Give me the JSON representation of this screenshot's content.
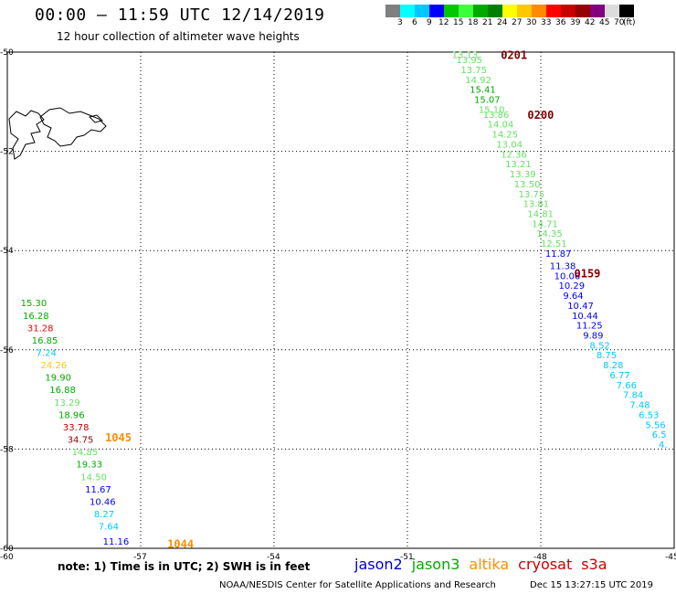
{
  "header": {
    "title": "00:00 – 11:59 UTC 12/14/2019",
    "subtitle": "12 hour collection of altimeter wave heights"
  },
  "legend": {
    "colors": [
      "#7f7f7f",
      "#00ffff",
      "#00c8ff",
      "#0000ff",
      "#00c800",
      "#3cff3c",
      "#00aa00",
      "#008000",
      "#ffff00",
      "#ffc800",
      "#ff8c00",
      "#ff0000",
      "#c80000",
      "#960000",
      "#800080",
      "#dcdcdc",
      "#000000"
    ],
    "labels": [
      "3",
      "6",
      "9",
      "12",
      "15",
      "18",
      "21",
      "24",
      "27",
      "30",
      "33",
      "36",
      "39",
      "42",
      "45",
      "70",
      "(ft)"
    ]
  },
  "axes": {
    "x_ticks": [
      "-60",
      "-57",
      "-54",
      "-51",
      "-48",
      "-45"
    ],
    "y_ticks": [
      "-50",
      "-52",
      "-54",
      "-56",
      "-58",
      "-60"
    ],
    "xlim": [
      -60,
      -45
    ],
    "ylim": [
      -60,
      -50
    ]
  },
  "chart_data": {
    "type": "scatter",
    "x_unit": "longitude",
    "y_unit": "latitude",
    "time_labels": [
      {
        "text": "0201",
        "lon": -48.9,
        "lat": -50.05,
        "color": "#800000"
      },
      {
        "text": "0200",
        "lon": -48.3,
        "lat": -51.25,
        "color": "#800000"
      },
      {
        "text": "0159",
        "lon": -47.25,
        "lat": -54.45,
        "color": "#800000"
      },
      {
        "text": "1045",
        "lon": -57.8,
        "lat": -57.75,
        "color": "#ff8c00"
      },
      {
        "text": "1044",
        "lon": -56.4,
        "lat": -59.9,
        "color": "#ff8c00"
      }
    ],
    "passes": [
      {
        "points": [
          {
            "lon": -50.0,
            "lat": -50.05,
            "v": "13.13",
            "c": "#66e066"
          },
          {
            "lon": -49.9,
            "lat": -50.15,
            "v": "13.95",
            "c": "#66e066"
          },
          {
            "lon": -49.8,
            "lat": -50.35,
            "v": "13.75",
            "c": "#66e066"
          },
          {
            "lon": -49.7,
            "lat": -50.55,
            "v": "14.92",
            "c": "#66e066"
          },
          {
            "lon": -49.6,
            "lat": -50.75,
            "v": "15.41",
            "c": "#00aa00"
          },
          {
            "lon": -49.5,
            "lat": -50.95,
            "v": "15.07",
            "c": "#00aa00"
          },
          {
            "lon": -49.4,
            "lat": -51.15,
            "v": "15.10",
            "c": "#66e066"
          },
          {
            "lon": -49.3,
            "lat": -51.25,
            "v": "13.86",
            "c": "#66e066"
          },
          {
            "lon": -49.2,
            "lat": -51.45,
            "v": "14.04",
            "c": "#66e066"
          },
          {
            "lon": -49.1,
            "lat": -51.65,
            "v": "14.25",
            "c": "#66e066"
          },
          {
            "lon": -49.0,
            "lat": -51.85,
            "v": "13.04",
            "c": "#66e066"
          },
          {
            "lon": -48.9,
            "lat": -52.05,
            "v": "12.36",
            "c": "#66e066"
          },
          {
            "lon": -48.8,
            "lat": -52.25,
            "v": "13.21",
            "c": "#66e066"
          },
          {
            "lon": -48.7,
            "lat": -52.45,
            "v": "13.39",
            "c": "#66e066"
          },
          {
            "lon": -48.6,
            "lat": -52.65,
            "v": "13.50",
            "c": "#66e066"
          },
          {
            "lon": -48.5,
            "lat": -52.85,
            "v": "13.75",
            "c": "#66e066"
          },
          {
            "lon": -48.4,
            "lat": -53.05,
            "v": "13.81",
            "c": "#66e066"
          },
          {
            "lon": -48.3,
            "lat": -53.25,
            "v": "14.81",
            "c": "#66e066"
          },
          {
            "lon": -48.2,
            "lat": -53.45,
            "v": "14.71",
            "c": "#66e066"
          },
          {
            "lon": -48.1,
            "lat": -53.65,
            "v": "14.35",
            "c": "#66e066"
          },
          {
            "lon": -48.0,
            "lat": -53.85,
            "v": "12.51",
            "c": "#66e066"
          },
          {
            "lon": -47.9,
            "lat": -54.05,
            "v": "11.87",
            "c": "#0000ff"
          },
          {
            "lon": -47.8,
            "lat": -54.3,
            "v": "11.38",
            "c": "#0000ff"
          },
          {
            "lon": -47.7,
            "lat": -54.5,
            "v": "10.06",
            "c": "#0000ff"
          },
          {
            "lon": -47.6,
            "lat": -54.7,
            "v": "10.29",
            "c": "#0000ff"
          },
          {
            "lon": -47.5,
            "lat": -54.9,
            "v": "9.64",
            "c": "#0000ff"
          },
          {
            "lon": -47.4,
            "lat": -55.1,
            "v": "10.47",
            "c": "#0000ff"
          },
          {
            "lon": -47.3,
            "lat": -55.3,
            "v": "10.44",
            "c": "#0000ff"
          },
          {
            "lon": -47.2,
            "lat": -55.5,
            "v": "11.25",
            "c": "#0000ff"
          },
          {
            "lon": -47.05,
            "lat": -55.7,
            "v": "9.89",
            "c": "#0000ff"
          },
          {
            "lon": -46.9,
            "lat": -55.9,
            "v": "8.52",
            "c": "#00c8ff"
          },
          {
            "lon": -46.75,
            "lat": -56.1,
            "v": "8.75",
            "c": "#00c8ff"
          },
          {
            "lon": -46.6,
            "lat": -56.3,
            "v": "8.28",
            "c": "#00c8ff"
          },
          {
            "lon": -46.45,
            "lat": -56.5,
            "v": "6.77",
            "c": "#00c8ff"
          },
          {
            "lon": -46.3,
            "lat": -56.7,
            "v": "7.66",
            "c": "#00c8ff"
          },
          {
            "lon": -46.15,
            "lat": -56.9,
            "v": "7.84",
            "c": "#00c8ff"
          },
          {
            "lon": -46.0,
            "lat": -57.1,
            "v": "7.48",
            "c": "#00c8ff"
          },
          {
            "lon": -45.8,
            "lat": -57.3,
            "v": "6.53",
            "c": "#00c8ff"
          },
          {
            "lon": -45.65,
            "lat": -57.5,
            "v": "5.56",
            "c": "#00c8ff"
          },
          {
            "lon": -45.5,
            "lat": -57.7,
            "v": "6.5",
            "c": "#00c8ff"
          },
          {
            "lon": -45.35,
            "lat": -57.9,
            "v": "4.",
            "c": "#00c8ff"
          }
        ]
      },
      {
        "points": [
          {
            "lon": -59.7,
            "lat": -55.05,
            "v": "15.30",
            "c": "#00aa00"
          },
          {
            "lon": -59.65,
            "lat": -55.3,
            "v": "16.28",
            "c": "#00aa00"
          },
          {
            "lon": -59.55,
            "lat": -55.55,
            "v": "31.28",
            "c": "#ff0000"
          },
          {
            "lon": -59.45,
            "lat": -55.8,
            "v": "16.85",
            "c": "#00aa00"
          },
          {
            "lon": -59.35,
            "lat": -56.05,
            "v": "7.24",
            "c": "#00c8ff"
          },
          {
            "lon": -59.25,
            "lat": -56.3,
            "v": "24.26",
            "c": "#ffc800"
          },
          {
            "lon": -59.15,
            "lat": -56.55,
            "v": "19.90",
            "c": "#00aa00"
          },
          {
            "lon": -59.05,
            "lat": -56.8,
            "v": "16.88",
            "c": "#00aa00"
          },
          {
            "lon": -58.95,
            "lat": -57.05,
            "v": "13.29",
            "c": "#66e066"
          },
          {
            "lon": -58.85,
            "lat": -57.3,
            "v": "18.96",
            "c": "#00aa00"
          },
          {
            "lon": -58.75,
            "lat": -57.55,
            "v": "33.78",
            "c": "#c80000"
          },
          {
            "lon": -58.65,
            "lat": -57.8,
            "v": "34.75",
            "c": "#960000"
          },
          {
            "lon": -58.55,
            "lat": -58.05,
            "v": "14.85",
            "c": "#66e066"
          },
          {
            "lon": -58.45,
            "lat": -58.3,
            "v": "19.33",
            "c": "#00aa00"
          },
          {
            "lon": -58.35,
            "lat": -58.55,
            "v": "14.50",
            "c": "#66e066"
          },
          {
            "lon": -58.25,
            "lat": -58.8,
            "v": "11.67",
            "c": "#0000ff"
          },
          {
            "lon": -58.15,
            "lat": -59.05,
            "v": "10.46",
            "c": "#0000ff"
          },
          {
            "lon": -58.05,
            "lat": -59.3,
            "v": "8.27",
            "c": "#00c8ff"
          },
          {
            "lon": -57.95,
            "lat": -59.55,
            "v": "7.64",
            "c": "#00c8ff"
          },
          {
            "lon": -57.85,
            "lat": -59.85,
            "v": "11.16",
            "c": "#0000ff"
          }
        ]
      }
    ]
  },
  "footer": {
    "note": "note: 1) Time is in UTC; 2) SWH is in feet",
    "satellites": [
      {
        "name": "jason2",
        "color": "#0000cc"
      },
      {
        "name": "jason3",
        "color": "#00aa00"
      },
      {
        "name": "altika",
        "color": "#ff8c00"
      },
      {
        "name": "cryosat",
        "color": "#cc0000"
      },
      {
        "name": "s3a",
        "color": "#cc0000"
      }
    ],
    "credit": "NOAA/NESDIS Center for Satellite Applications and Research",
    "timestamp": "Dec 15 13:27:15 UTC 2019"
  }
}
